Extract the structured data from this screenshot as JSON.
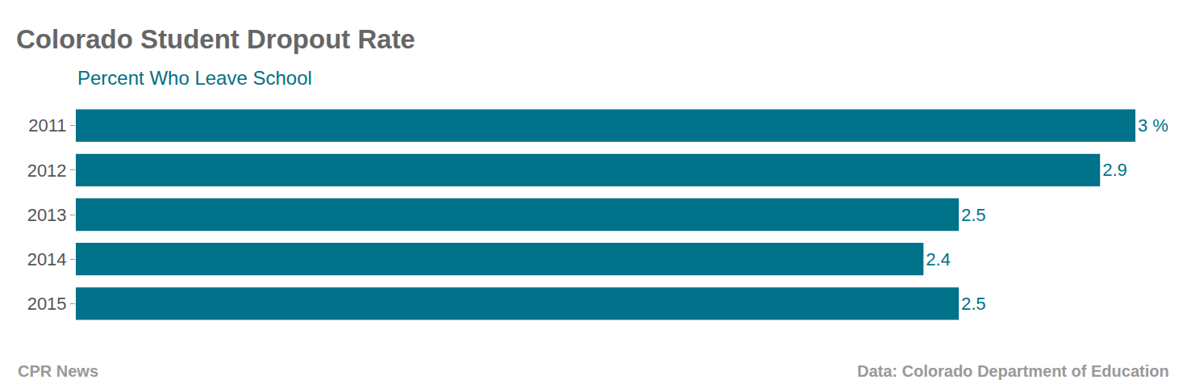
{
  "chart_data": {
    "type": "bar",
    "orientation": "horizontal",
    "title": "Colorado Student Dropout Rate",
    "subtitle": "Percent Who Leave School",
    "credit": "CPR News",
    "source": "Data: Colorado Department of Education",
    "categories": [
      "2011",
      "2012",
      "2013",
      "2014",
      "2015"
    ],
    "values": [
      3,
      2.9,
      2.5,
      2.4,
      2.5
    ],
    "value_labels": [
      "3 %",
      "2.9",
      "2.5",
      "2.4",
      "2.5"
    ],
    "data_labels": true,
    "color": "#00728a",
    "xlim": [
      0,
      3
    ],
    "tick_labels": "y",
    "grid": false
  }
}
